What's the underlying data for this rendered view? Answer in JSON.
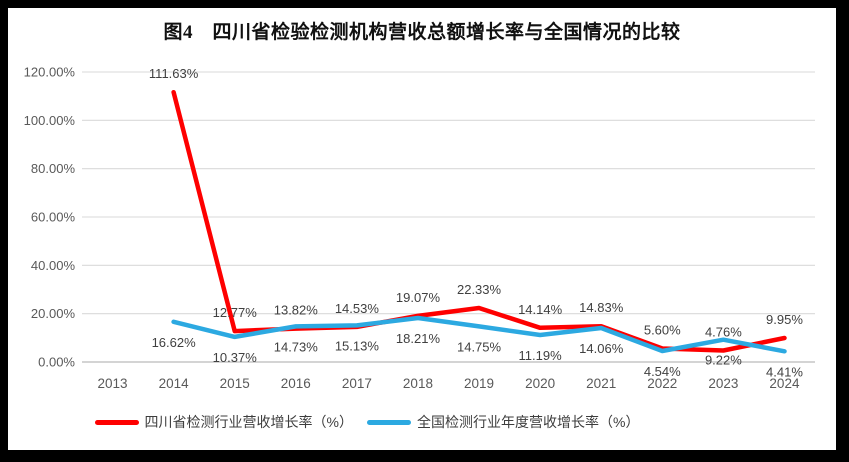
{
  "title": "图4　四川省检验检测机构营收总额增长率与全国情况的比较",
  "frame": {
    "border_color": "#000000",
    "panel_background": "#ffffff"
  },
  "chart_data": {
    "type": "line",
    "title": "图4　四川省检验检测机构营收总额增长率与全国情况的比较",
    "categories": [
      "2013",
      "2014",
      "2015",
      "2016",
      "2017",
      "2018",
      "2019",
      "2020",
      "2021",
      "2022",
      "2023",
      "2024"
    ],
    "series": [
      {
        "name": "四川省检测行业营收增长率（%）",
        "color": "#fe0000",
        "label_position": "above",
        "values": [
          null,
          111.63,
          12.77,
          13.82,
          14.53,
          19.07,
          22.33,
          14.14,
          14.83,
          5.6,
          4.76,
          9.95
        ]
      },
      {
        "name": "全国检测行业年度营收增长率（%）",
        "color": "#2ca9e1",
        "label_position": "below",
        "values": [
          null,
          16.62,
          10.37,
          14.73,
          15.13,
          18.21,
          14.75,
          11.19,
          14.06,
          4.54,
          9.22,
          4.41
        ]
      }
    ],
    "xlabel": "",
    "ylabel": "",
    "y_axis": {
      "min": 0,
      "max": 120,
      "step": 20
    },
    "y_tick_labels": [
      "0.00%",
      "20.00%",
      "40.00%",
      "60.00%",
      "80.00%",
      "100.00%",
      "120.00%"
    ],
    "grid": true,
    "legend_position": "bottom",
    "data_label_format": "0.00%",
    "colors": {
      "gridline": "#d9d9d9",
      "zero_line": "#c6c6c6",
      "axis_text": "#595959",
      "data_label_text": "#404040"
    }
  }
}
